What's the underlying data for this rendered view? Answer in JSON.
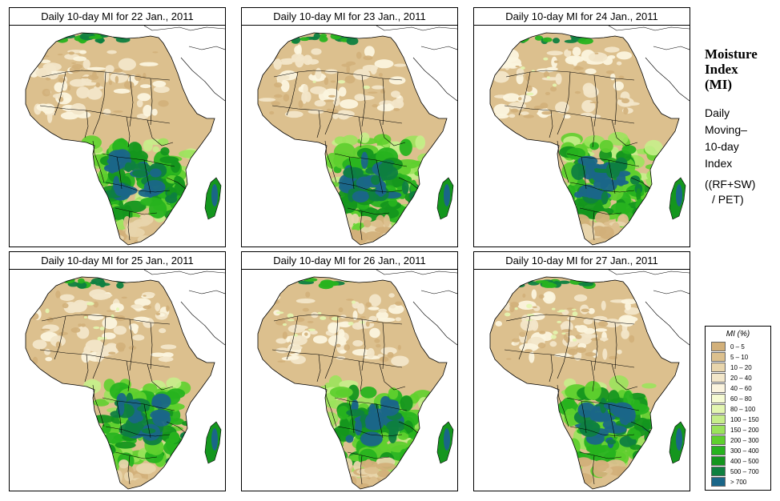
{
  "panels": [
    {
      "title": "Daily 10-day MI for 22 Jan., 2011",
      "variant": 0
    },
    {
      "title": "Daily 10-day MI for 23 Jan., 2011",
      "variant": 1
    },
    {
      "title": "Daily 10-day MI for 24 Jan., 2011",
      "variant": 2
    },
    {
      "title": "Daily 10-day MI for 25 Jan., 2011",
      "variant": 3
    },
    {
      "title": "Daily 10-day MI for 26 Jan., 2011",
      "variant": 4
    },
    {
      "title": "Daily 10-day MI for 27 Jan., 2011",
      "variant": 5
    }
  ],
  "side": {
    "title_lines": [
      "Moisture",
      "Index",
      "(MI)"
    ],
    "desc_lines": [
      "Daily",
      "Moving–",
      "10-day",
      "Index"
    ],
    "formula_lines": [
      "((RF+SW)",
      "/ PET)"
    ]
  },
  "legend": {
    "title": "MI (%)",
    "items": [
      {
        "label": "0 – 5",
        "color": "#d2b07a"
      },
      {
        "label": "5 – 10",
        "color": "#dcc08e"
      },
      {
        "label": "10 – 20",
        "color": "#e8d5ac"
      },
      {
        "label": "20 – 40",
        "color": "#f2e6c9"
      },
      {
        "label": "40 – 60",
        "color": "#fbf4de"
      },
      {
        "label": "60 – 80",
        "color": "#f6fbd2"
      },
      {
        "label": "80 – 100",
        "color": "#e3f6b0"
      },
      {
        "label": "100 – 150",
        "color": "#c7ee8b"
      },
      {
        "label": "150 – 200",
        "color": "#9be35c"
      },
      {
        "label": "200 – 300",
        "color": "#5fd02e"
      },
      {
        "label": "300 – 400",
        "color": "#27b31f"
      },
      {
        "label": "400 – 500",
        "color": "#14961e"
      },
      {
        "label": "500 – 700",
        "color": "#0e8040"
      },
      {
        "label": "> 700",
        "color": "#1a6688"
      }
    ]
  }
}
